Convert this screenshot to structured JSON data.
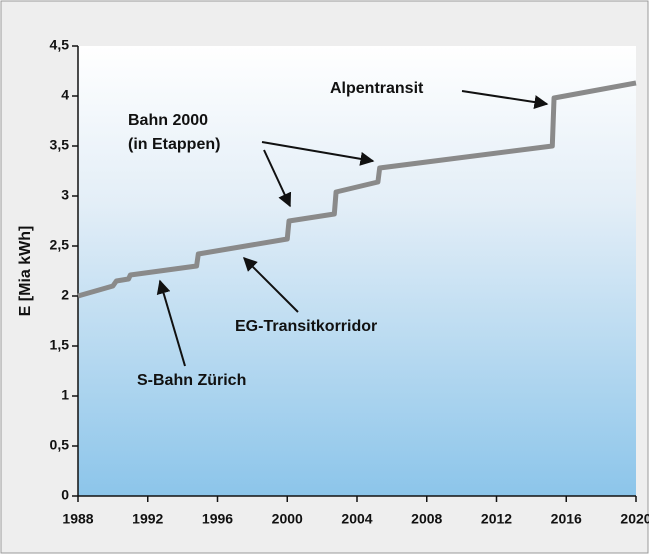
{
  "chart_data": {
    "type": "line",
    "y_label": "E [Mia kWh]",
    "annotations": [
      "Alpentransit",
      "Bahn 2000",
      "(in Etappen)",
      "EG-Transitkorridor",
      "S-Bahn Zürich"
    ],
    "x": [
      1988,
      1990,
      1990.2,
      1990.9,
      1991,
      1994.8,
      1994.9,
      2000,
      2000.1,
      2002.7,
      2002.8,
      2005.2,
      2005.3,
      2015.2,
      2015.3,
      2020
    ],
    "series": [
      {
        "color": "#8a8a8a",
        "values": [
          2.0,
          2.1,
          2.15,
          2.17,
          2.21,
          2.3,
          2.42,
          2.57,
          2.75,
          2.82,
          3.04,
          3.14,
          3.28,
          3.5,
          3.98,
          4.13
        ]
      }
    ],
    "xlim": [
      1988,
      2020
    ],
    "xticks": [
      1988,
      1992,
      1996,
      2000,
      2004,
      2008,
      2012,
      2016,
      2020
    ],
    "ylim": [
      0,
      4.5
    ],
    "yticks": [
      0,
      {
        "value": 0.5,
        "label": "0,5"
      },
      1,
      {
        "value": 1.5,
        "label": "1,5"
      },
      2,
      {
        "value": 2.5,
        "label": "2,5"
      },
      3,
      {
        "value": 3.5,
        "label": "3,5"
      },
      4,
      {
        "value": 4.5,
        "label": "4,5"
      }
    ]
  }
}
